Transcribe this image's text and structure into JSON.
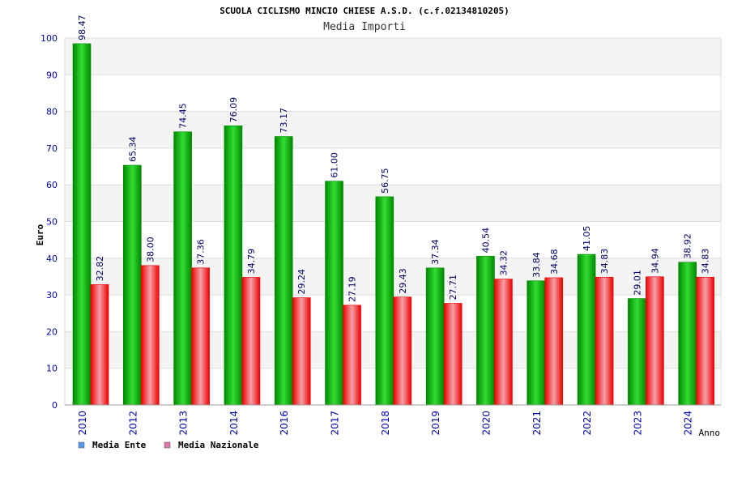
{
  "colors": {
    "ente_light": "#33dd33",
    "ente_dark": "#008800",
    "naz_light": "#f4a0a8",
    "naz_dark": "#ee0000",
    "legend_ente": "#5599ee",
    "legend_naz": "#dd77aa",
    "axis_text": "#0000aa",
    "band": "#f4f4f4",
    "grid": "#dddddd"
  },
  "chart_data": {
    "type": "bar",
    "title": "SCUOLA CICLISMO MINCIO CHIESE A.S.D. (c.f.02134810205)",
    "subtitle": "Media Importi",
    "ylabel": "Euro",
    "xlabel": "Anno",
    "ylim": [
      0,
      100
    ],
    "yticks": [
      0,
      10,
      20,
      30,
      40,
      50,
      60,
      70,
      80,
      90,
      100
    ],
    "grid": true,
    "legend_position": "bottom-left",
    "categories": [
      "2010",
      "2012",
      "2013",
      "2014",
      "2016",
      "2017",
      "2018",
      "2019",
      "2020",
      "2021",
      "2022",
      "2023",
      "2024"
    ],
    "series": [
      {
        "name": "Media Ente",
        "values": [
          98.47,
          65.34,
          74.45,
          76.09,
          73.17,
          61.0,
          56.75,
          37.34,
          40.54,
          33.84,
          41.05,
          29.01,
          38.92
        ],
        "labels": [
          "98.47",
          "65.34",
          "74.45",
          "76.09",
          "73.17",
          "61.00",
          "56.75",
          "37.34",
          "40.54",
          "33.84",
          "41.05",
          "29.01",
          "38.92"
        ]
      },
      {
        "name": "Media Nazionale",
        "values": [
          32.82,
          38.0,
          37.36,
          34.79,
          29.24,
          27.19,
          29.43,
          27.71,
          34.32,
          34.68,
          34.83,
          34.94,
          34.83
        ],
        "labels": [
          "32.82",
          "38.00",
          "37.36",
          "34.79",
          "29.24",
          "27.19",
          "29.43",
          "27.71",
          "34.32",
          "34.68",
          "34.83",
          "34.94",
          "34.83"
        ]
      }
    ]
  }
}
